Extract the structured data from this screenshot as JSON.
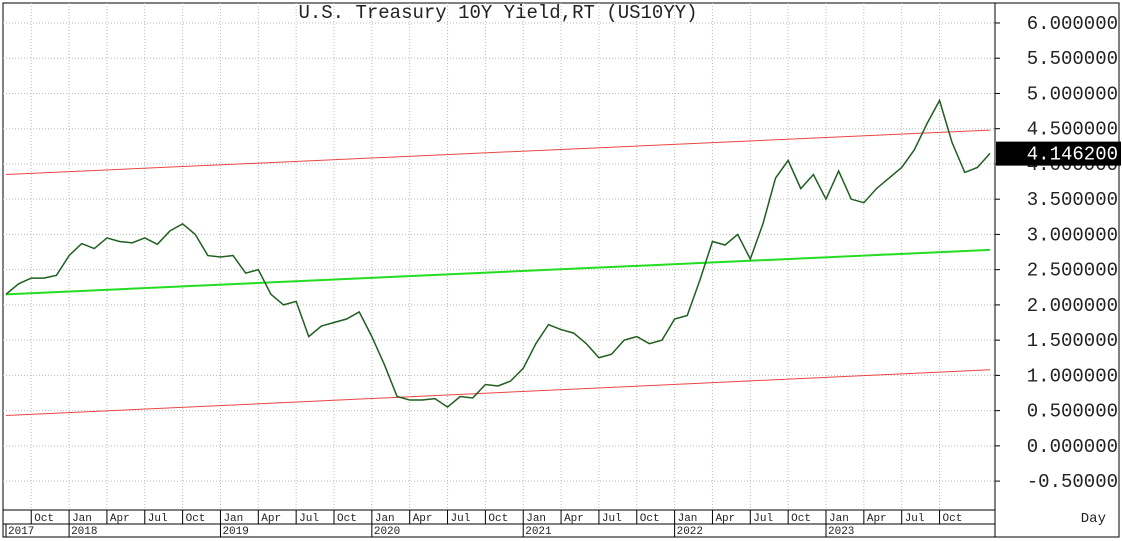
{
  "chart_data": {
    "type": "line",
    "title": "U.S. Treasury 10Y Yield,RT (US10YY)",
    "x_label": "Day",
    "xlim": [
      "2017-08",
      "2024-02"
    ],
    "ylim": [
      -0.91,
      6.255
    ],
    "yticks": [
      {
        "value": 6,
        "label": "6.000000"
      },
      {
        "value": 5.5,
        "label": "5.500000"
      },
      {
        "value": 5,
        "label": "5.000000"
      },
      {
        "value": 4.5,
        "label": "4.500000"
      },
      {
        "value": 4,
        "label": "4.000000"
      },
      {
        "value": 3.5,
        "label": "3.500000"
      },
      {
        "value": 3,
        "label": "3.000000"
      },
      {
        "value": 2.5,
        "label": "2.500000"
      },
      {
        "value": 2,
        "label": "2.000000"
      },
      {
        "value": 1.5,
        "label": "1.500000"
      },
      {
        "value": 1,
        "label": "1.000000"
      },
      {
        "value": 0.5,
        "label": "0.500000"
      },
      {
        "value": 0,
        "label": "0.000000"
      },
      {
        "value": -0.5,
        "label": "-0.50000"
      }
    ],
    "xticks": [
      {
        "value": "2017-10",
        "label": "Oct"
      },
      {
        "value": "2018-01",
        "label": "Jan"
      },
      {
        "value": "2018-04",
        "label": "Apr"
      },
      {
        "value": "2018-07",
        "label": "Jul"
      },
      {
        "value": "2018-10",
        "label": "Oct"
      },
      {
        "value": "2019-01",
        "label": "Jan"
      },
      {
        "value": "2019-04",
        "label": "Apr"
      },
      {
        "value": "2019-07",
        "label": "Jul"
      },
      {
        "value": "2019-10",
        "label": "Oct"
      },
      {
        "value": "2020-01",
        "label": "Jan"
      },
      {
        "value": "2020-04",
        "label": "Apr"
      },
      {
        "value": "2020-07",
        "label": "Jul"
      },
      {
        "value": "2020-10",
        "label": "Oct"
      },
      {
        "value": "2021-01",
        "label": "Jan"
      },
      {
        "value": "2021-04",
        "label": "Apr"
      },
      {
        "value": "2021-07",
        "label": "Jul"
      },
      {
        "value": "2021-10",
        "label": "Oct"
      },
      {
        "value": "2022-01",
        "label": "Jan"
      },
      {
        "value": "2022-04",
        "label": "Apr"
      },
      {
        "value": "2022-07",
        "label": "Jul"
      },
      {
        "value": "2022-10",
        "label": "Oct"
      },
      {
        "value": "2023-01",
        "label": "Jan"
      },
      {
        "value": "2023-04",
        "label": "Apr"
      },
      {
        "value": "2023-07",
        "label": "Jul"
      },
      {
        "value": "2023-10",
        "label": "Oct"
      }
    ],
    "year_ticks": [
      {
        "value": "2017-08",
        "label": "2017"
      },
      {
        "value": "2018-01",
        "label": "2018"
      },
      {
        "value": "2019-01",
        "label": "2019"
      },
      {
        "value": "2020-01",
        "label": "2020"
      },
      {
        "value": "2021-01",
        "label": "2021"
      },
      {
        "value": "2022-01",
        "label": "2022"
      },
      {
        "value": "2023-01",
        "label": "2023"
      }
    ],
    "grid": true,
    "x": [
      "2017-08",
      "2017-09",
      "2017-10",
      "2017-11",
      "2017-12",
      "2018-01",
      "2018-02",
      "2018-03",
      "2018-04",
      "2018-05",
      "2018-06",
      "2018-07",
      "2018-08",
      "2018-09",
      "2018-10",
      "2018-11",
      "2018-12",
      "2019-01",
      "2019-02",
      "2019-03",
      "2019-04",
      "2019-05",
      "2019-06",
      "2019-07",
      "2019-08",
      "2019-09",
      "2019-10",
      "2019-11",
      "2019-12",
      "2020-01",
      "2020-02",
      "2020-03",
      "2020-04",
      "2020-05",
      "2020-06",
      "2020-07",
      "2020-08",
      "2020-09",
      "2020-10",
      "2020-11",
      "2020-12",
      "2021-01",
      "2021-02",
      "2021-03",
      "2021-04",
      "2021-05",
      "2021-06",
      "2021-07",
      "2021-08",
      "2021-09",
      "2021-10",
      "2021-11",
      "2021-12",
      "2022-01",
      "2022-02",
      "2022-03",
      "2022-04",
      "2022-05",
      "2022-06",
      "2022-07",
      "2022-08",
      "2022-09",
      "2022-10",
      "2022-11",
      "2022-12",
      "2023-01",
      "2023-02",
      "2023-03",
      "2023-04",
      "2023-05",
      "2023-06",
      "2023-07",
      "2023-08",
      "2023-09",
      "2023-10",
      "2023-11",
      "2023-12",
      "2024-01",
      "2024-02"
    ],
    "series": [
      {
        "name": "US10YY",
        "color": "#1f5f1f",
        "values": [
          2.15,
          2.3,
          2.38,
          2.38,
          2.42,
          2.7,
          2.87,
          2.8,
          2.95,
          2.9,
          2.88,
          2.95,
          2.86,
          3.05,
          3.15,
          3.0,
          2.7,
          2.68,
          2.7,
          2.45,
          2.5,
          2.15,
          2.0,
          2.05,
          1.55,
          1.7,
          1.75,
          1.8,
          1.9,
          1.55,
          1.15,
          0.7,
          0.65,
          0.65,
          0.67,
          0.55,
          0.7,
          0.68,
          0.87,
          0.85,
          0.92,
          1.1,
          1.45,
          1.72,
          1.65,
          1.6,
          1.45,
          1.25,
          1.3,
          1.5,
          1.55,
          1.45,
          1.5,
          1.8,
          1.85,
          2.35,
          2.9,
          2.85,
          3.0,
          2.65,
          3.15,
          3.8,
          4.05,
          3.65,
          3.85,
          3.5,
          3.9,
          3.5,
          3.45,
          3.65,
          3.8,
          3.95,
          4.2,
          4.57,
          4.9,
          4.3,
          3.88,
          3.95,
          4.15
        ]
      }
    ],
    "trend_lines": [
      {
        "color": "#ee4444",
        "x": [
          "2017-08",
          "2024-02"
        ],
        "y": [
          3.85,
          4.48
        ]
      },
      {
        "color": "#22dd22",
        "x": [
          "2017-08",
          "2024-02"
        ],
        "y": [
          2.15,
          2.78
        ]
      },
      {
        "color": "#ee4444",
        "x": [
          "2017-08",
          "2024-02"
        ],
        "y": [
          0.43,
          1.08
        ]
      }
    ],
    "last_value": 4.1462,
    "last_value_label": "4.146200"
  }
}
